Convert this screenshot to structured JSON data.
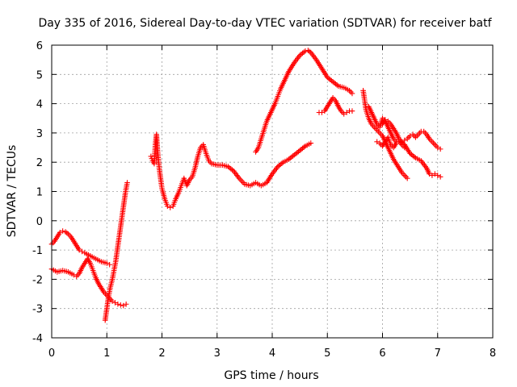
{
  "chart_data": {
    "type": "scatter",
    "title": "Day 335 of 2016, Sidereal Day-to-day VTEC variation (SDTVAR) for receiver batf",
    "xlabel": "GPS time / hours",
    "ylabel": "SDTVAR / TECUs",
    "xlim": [
      0,
      8
    ],
    "ylim": [
      -4,
      6
    ],
    "xticks": [
      0,
      1,
      2,
      3,
      4,
      5,
      6,
      7,
      8
    ],
    "yticks": [
      -4,
      -3,
      -2,
      -1,
      0,
      1,
      2,
      3,
      4,
      5,
      6
    ],
    "grid": true,
    "marker": "plus",
    "color": "#ff0000",
    "segments": [
      {
        "x": [
          0.0,
          0.05,
          0.1,
          0.15,
          0.2,
          0.25,
          0.3,
          0.35,
          0.4,
          0.45,
          0.5,
          0.55,
          0.6,
          0.7,
          0.8,
          0.9,
          1.0,
          1.05
        ],
        "y": [
          -0.8,
          -0.7,
          -0.55,
          -0.4,
          -0.35,
          -0.38,
          -0.45,
          -0.55,
          -0.7,
          -0.85,
          -1.0,
          -1.05,
          -1.1,
          -1.2,
          -1.3,
          -1.4,
          -1.45,
          -1.5
        ]
      },
      {
        "x": [
          0.0,
          0.1,
          0.2,
          0.3,
          0.4,
          0.45,
          0.5,
          0.55,
          0.6,
          0.65,
          0.7,
          0.75,
          0.8,
          0.85,
          0.9,
          0.95,
          1.0,
          1.05,
          1.1,
          1.15,
          1.2,
          1.25,
          1.3,
          1.35
        ],
        "y": [
          -1.65,
          -1.75,
          -1.7,
          -1.75,
          -1.85,
          -1.9,
          -1.8,
          -1.6,
          -1.45,
          -1.3,
          -1.45,
          -1.7,
          -1.95,
          -2.15,
          -2.3,
          -2.45,
          -2.55,
          -2.65,
          -2.75,
          -2.8,
          -2.85,
          -2.88,
          -2.9,
          -2.85
        ]
      },
      {
        "x": [
          0.97,
          1.0,
          1.03,
          1.06,
          1.1,
          1.13,
          1.16,
          1.19,
          1.22,
          1.25,
          1.28,
          1.31,
          1.34,
          1.37
        ],
        "y": [
          -3.4,
          -3.0,
          -2.6,
          -2.3,
          -2.0,
          -1.7,
          -1.4,
          -1.0,
          -0.6,
          -0.2,
          0.2,
          0.6,
          1.0,
          1.3
        ]
      },
      {
        "x": [
          1.8,
          1.83,
          1.86,
          1.88,
          1.9,
          1.92,
          1.95,
          2.0,
          2.05,
          2.1,
          2.15,
          2.2,
          2.25,
          2.3,
          2.35,
          2.4,
          2.45,
          2.5,
          2.55,
          2.6,
          2.65,
          2.7,
          2.75,
          2.8,
          2.85,
          2.9,
          3.0,
          3.1,
          3.2,
          3.3,
          3.4,
          3.5,
          3.6,
          3.7,
          3.8,
          3.9,
          4.0,
          4.1,
          4.2,
          4.3,
          4.4,
          4.5,
          4.6,
          4.7
        ],
        "y": [
          2.2,
          2.05,
          1.95,
          2.6,
          2.95,
          2.4,
          1.8,
          1.1,
          0.75,
          0.5,
          0.45,
          0.5,
          0.75,
          0.95,
          1.2,
          1.45,
          1.2,
          1.4,
          1.5,
          1.8,
          2.2,
          2.5,
          2.6,
          2.3,
          2.05,
          1.95,
          1.9,
          1.9,
          1.85,
          1.7,
          1.45,
          1.25,
          1.2,
          1.3,
          1.2,
          1.3,
          1.6,
          1.85,
          2.0,
          2.1,
          2.25,
          2.4,
          2.55,
          2.65
        ]
      },
      {
        "x": [
          3.7,
          3.75,
          3.8,
          3.85,
          3.9,
          3.95,
          4.0,
          4.05,
          4.1,
          4.15,
          4.2,
          4.3,
          4.4,
          4.5,
          4.6,
          4.65,
          4.7,
          4.8,
          4.9,
          5.0,
          5.1,
          5.2,
          5.3,
          5.4,
          5.45
        ],
        "y": [
          2.35,
          2.5,
          2.8,
          3.1,
          3.4,
          3.6,
          3.8,
          4.0,
          4.25,
          4.5,
          4.7,
          5.1,
          5.4,
          5.65,
          5.8,
          5.82,
          5.75,
          5.5,
          5.2,
          4.9,
          4.75,
          4.6,
          4.55,
          4.45,
          4.35
        ]
      },
      {
        "x": [
          4.85,
          4.9,
          4.95,
          5.0,
          5.05,
          5.1,
          5.15,
          5.2,
          5.25,
          5.3,
          5.35,
          5.4,
          5.45
        ],
        "y": [
          3.7,
          3.7,
          3.75,
          3.9,
          4.05,
          4.2,
          4.1,
          3.9,
          3.75,
          3.65,
          3.7,
          3.75,
          3.75
        ]
      },
      {
        "x": [
          5.65,
          5.7,
          5.75,
          5.8,
          5.85,
          5.9,
          5.95,
          6.0,
          6.05,
          6.1,
          6.15,
          6.2,
          6.25,
          6.3,
          6.35,
          6.4,
          6.45
        ],
        "y": [
          4.45,
          3.8,
          3.5,
          3.3,
          3.2,
          3.1,
          3.0,
          2.9,
          2.7,
          2.5,
          2.3,
          2.1,
          1.95,
          1.8,
          1.65,
          1.55,
          1.45
        ]
      },
      {
        "x": [
          5.75,
          5.8,
          5.85,
          5.9,
          5.95,
          6.0,
          6.05,
          6.1,
          6.15,
          6.2,
          6.25,
          6.3,
          6.4,
          6.5,
          6.6,
          6.7,
          6.8,
          6.85,
          6.9,
          6.95,
          7.0,
          7.05
        ],
        "y": [
          3.9,
          3.7,
          3.5,
          3.3,
          3.2,
          3.5,
          3.4,
          3.2,
          3.0,
          2.8,
          2.7,
          2.75,
          2.6,
          2.3,
          2.15,
          2.05,
          1.8,
          1.6,
          1.55,
          1.6,
          1.55,
          1.5
        ]
      },
      {
        "x": [
          6.0,
          6.05,
          6.1,
          6.15,
          6.2,
          6.25,
          6.3,
          6.35,
          6.4,
          6.45,
          6.5,
          6.55,
          6.6,
          6.65,
          6.7,
          6.75,
          6.8,
          6.85,
          6.9,
          6.95,
          7.0,
          7.05
        ],
        "y": [
          3.3,
          3.45,
          3.4,
          3.3,
          3.15,
          3.0,
          2.8,
          2.7,
          2.75,
          2.8,
          2.9,
          2.95,
          2.85,
          2.95,
          3.05,
          3.05,
          2.95,
          2.8,
          2.7,
          2.6,
          2.5,
          2.45
        ]
      },
      {
        "x": [
          5.9,
          5.95,
          6.0,
          6.05,
          6.1,
          6.15,
          6.2,
          6.25,
          6.3,
          6.35,
          6.4
        ],
        "y": [
          2.7,
          2.65,
          2.55,
          2.7,
          2.85,
          2.6,
          2.5,
          2.65,
          2.7,
          2.6,
          2.5
        ]
      }
    ]
  }
}
